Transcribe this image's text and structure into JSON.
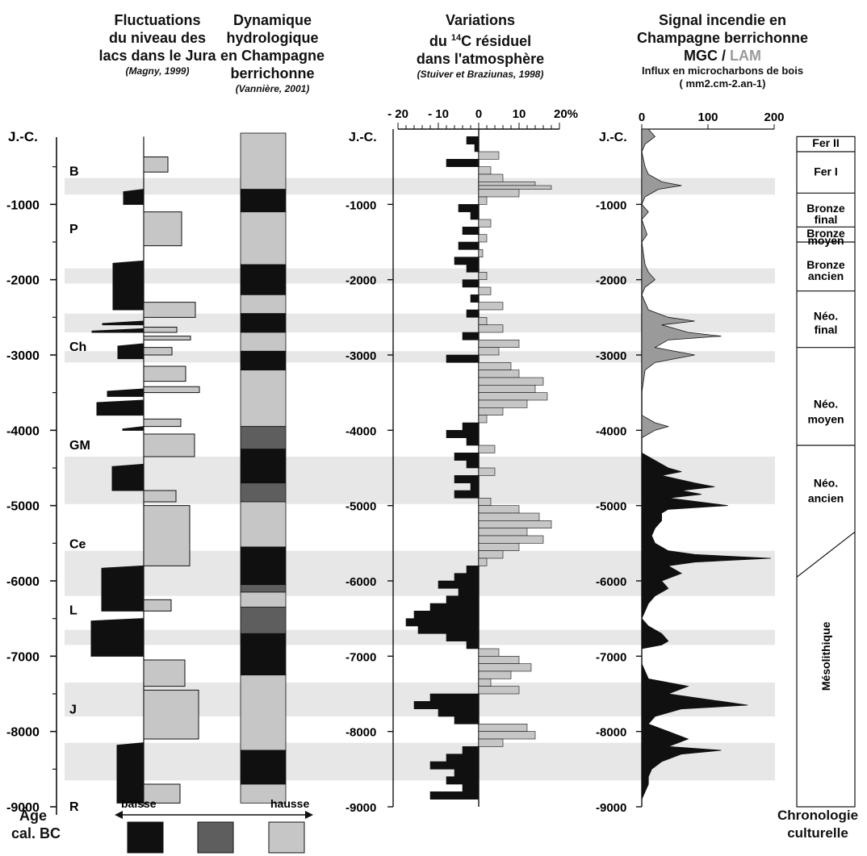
{
  "headers": {
    "lakes": {
      "l1": "Fluctuations",
      "l2": "du niveau des",
      "l3": "lacs dans le Jura",
      "ref": "(Magny, 1999)"
    },
    "hydro": {
      "l1": "Dynamique",
      "l2": "hydrologique",
      "l3": "en Champagne",
      "l4": "berrichonne",
      "ref": "(Vannière, 2001)"
    },
    "c14": {
      "l1": "Variations",
      "l2a": "du ",
      "l2sup": "14",
      "l2b": "C résiduel",
      "l3": "dans l'atmosphère",
      "ref": "(Stuiver et Braziunas, 1998)"
    },
    "fire": {
      "l1": "Signal incendie en",
      "l2": "Champagne berrichonne",
      "l3a": "MGC / ",
      "l3b": "LAM",
      "l4": "Influx en microcharbons de bois",
      "l5": "( mm2.cm-2.an-1)"
    }
  },
  "axis": {
    "jc": "J.-C.",
    "ticks": [
      "-1000",
      "-2000",
      "-3000",
      "-4000",
      "-5000",
      "-6000",
      "-7000",
      "-8000",
      "-9000"
    ],
    "title_l1": "Âge",
    "title_l2": "cal. BC"
  },
  "c14_axis": {
    "ticks": [
      "- 20",
      "- 10",
      "0",
      "10",
      "20%"
    ]
  },
  "fire_axis": {
    "ticks": [
      "0",
      "100",
      "200"
    ]
  },
  "phases": [
    "B",
    "P",
    "Ch",
    "GM",
    "Ce",
    "L",
    "J",
    "R"
  ],
  "legend": {
    "left": "baisse",
    "right": "hausse"
  },
  "culture": {
    "periods": [
      "Fer II",
      "Fer I",
      "Bronze final",
      "Bronze moyen",
      "Bronze ancien",
      "Néo. final",
      "Néo. moyen",
      "Néo. ancien",
      "Mésolithique"
    ],
    "title_l1": "Chronologie",
    "title_l2": "culturelle"
  },
  "colors": {
    "dark": "#101010",
    "medium": "#5e5e5e",
    "light": "#c6c6c6",
    "band": "#e7e7e7"
  },
  "chart_data": {
    "type": "area",
    "y_axis": {
      "label": "Âge cal. BC",
      "range": [
        -9000,
        0
      ]
    },
    "lake_levels": {
      "high_phases": [
        [
          -370,
          -570
        ],
        [
          -1100,
          -1550
        ],
        [
          -2300,
          -2500
        ],
        [
          -2630,
          -2700
        ],
        [
          -2750,
          -2800
        ],
        [
          -2900,
          -3000
        ],
        [
          -3150,
          -3350
        ],
        [
          -3420,
          -3500
        ],
        [
          -3850,
          -3950
        ],
        [
          -4050,
          -4350
        ],
        [
          -4800,
          -4950
        ],
        [
          -5000,
          -5800
        ],
        [
          -6250,
          -6400
        ],
        [
          -7050,
          -7400
        ],
        [
          -7450,
          -8100
        ],
        [
          -8700,
          -8950
        ]
      ],
      "low_phases": [
        [
          -800,
          -1000
        ],
        [
          -1750,
          -2400
        ],
        [
          -2550,
          -2600
        ],
        [
          -2650,
          -2700
        ],
        [
          -2850,
          -3050
        ],
        [
          -3450,
          -3550
        ],
        [
          -3600,
          -3800
        ],
        [
          -3950,
          -4000
        ],
        [
          -4450,
          -4800
        ],
        [
          -5800,
          -6400
        ],
        [
          -6500,
          -7000
        ],
        [
          -8150,
          -8950
        ]
      ]
    },
    "hydrology": {
      "levels": [
        "dark",
        "medium",
        "light"
      ],
      "segments": [
        {
          "from": 0,
          "to": -800,
          "level": "light"
        },
        {
          "from": -800,
          "to": -1100,
          "level": "dark"
        },
        {
          "from": -1100,
          "to": -1800,
          "level": "light"
        },
        {
          "from": -1800,
          "to": -2200,
          "level": "dark"
        },
        {
          "from": -2200,
          "to": -2450,
          "level": "light"
        },
        {
          "from": -2450,
          "to": -2700,
          "level": "dark"
        },
        {
          "from": -2700,
          "to": -2950,
          "level": "light"
        },
        {
          "from": -2950,
          "to": -3200,
          "level": "dark"
        },
        {
          "from": -3200,
          "to": -3950,
          "level": "light"
        },
        {
          "from": -3950,
          "to": -4250,
          "level": "medium"
        },
        {
          "from": -4250,
          "to": -4700,
          "level": "dark"
        },
        {
          "from": -4700,
          "to": -4950,
          "level": "medium"
        },
        {
          "from": -4950,
          "to": -5550,
          "level": "light"
        },
        {
          "from": -5550,
          "to": -6050,
          "level": "dark"
        },
        {
          "from": -6050,
          "to": -6150,
          "level": "medium"
        },
        {
          "from": -6150,
          "to": -6350,
          "level": "light"
        },
        {
          "from": -6350,
          "to": -6700,
          "level": "medium"
        },
        {
          "from": -6700,
          "to": -7250,
          "level": "dark"
        },
        {
          "from": -7250,
          "to": -8250,
          "level": "light"
        },
        {
          "from": -8250,
          "to": -8700,
          "level": "dark"
        },
        {
          "from": -8700,
          "to": -8950,
          "level": "light"
        }
      ]
    },
    "c14": {
      "x_label": "%",
      "x_range": [
        -20,
        20
      ],
      "points": [
        [
          -100,
          -3
        ],
        [
          -200,
          -1
        ],
        [
          -300,
          5
        ],
        [
          -400,
          -8
        ],
        [
          -500,
          3
        ],
        [
          -600,
          6
        ],
        [
          -700,
          14
        ],
        [
          -750,
          18
        ],
        [
          -800,
          10
        ],
        [
          -900,
          2
        ],
        [
          -1000,
          -5
        ],
        [
          -1100,
          -2
        ],
        [
          -1200,
          3
        ],
        [
          -1300,
          -4
        ],
        [
          -1400,
          2
        ],
        [
          -1500,
          -5
        ],
        [
          -1600,
          1
        ],
        [
          -1700,
          -6
        ],
        [
          -1800,
          -3
        ],
        [
          -1900,
          2
        ],
        [
          -2000,
          -4
        ],
        [
          -2100,
          3
        ],
        [
          -2200,
          -2
        ],
        [
          -2300,
          6
        ],
        [
          -2400,
          -3
        ],
        [
          -2500,
          2
        ],
        [
          -2600,
          6
        ],
        [
          -2700,
          -4
        ],
        [
          -2800,
          10
        ],
        [
          -2900,
          5
        ],
        [
          -3000,
          -8
        ],
        [
          -3100,
          8
        ],
        [
          -3200,
          10
        ],
        [
          -3300,
          16
        ],
        [
          -3400,
          14
        ],
        [
          -3500,
          17
        ],
        [
          -3600,
          12
        ],
        [
          -3700,
          6
        ],
        [
          -3800,
          2
        ],
        [
          -3900,
          -4
        ],
        [
          -4000,
          -8
        ],
        [
          -4100,
          -3
        ],
        [
          -4200,
          4
        ],
        [
          -4300,
          -6
        ],
        [
          -4400,
          -3
        ],
        [
          -4500,
          4
        ],
        [
          -4600,
          -6
        ],
        [
          -4700,
          -2
        ],
        [
          -4800,
          -6
        ],
        [
          -4900,
          3
        ],
        [
          -5000,
          10
        ],
        [
          -5100,
          15
        ],
        [
          -5200,
          18
        ],
        [
          -5300,
          12
        ],
        [
          -5400,
          16
        ],
        [
          -5500,
          10
        ],
        [
          -5600,
          6
        ],
        [
          -5700,
          2
        ],
        [
          -5800,
          -3
        ],
        [
          -5900,
          -6
        ],
        [
          -6000,
          -10
        ],
        [
          -6100,
          -5
        ],
        [
          -6200,
          -8
        ],
        [
          -6300,
          -12
        ],
        [
          -6400,
          -16
        ],
        [
          -6500,
          -18
        ],
        [
          -6600,
          -15
        ],
        [
          -6700,
          -8
        ],
        [
          -6800,
          -3
        ],
        [
          -6900,
          5
        ],
        [
          -7000,
          10
        ],
        [
          -7100,
          13
        ],
        [
          -7200,
          8
        ],
        [
          -7300,
          3
        ],
        [
          -7400,
          10
        ],
        [
          -7500,
          -12
        ],
        [
          -7600,
          -16
        ],
        [
          -7700,
          -10
        ],
        [
          -7800,
          -6
        ],
        [
          -7900,
          12
        ],
        [
          -8000,
          14
        ],
        [
          -8100,
          6
        ],
        [
          -8200,
          -4
        ],
        [
          -8300,
          -8
        ],
        [
          -8400,
          -12
        ],
        [
          -8500,
          -6
        ],
        [
          -8600,
          -8
        ],
        [
          -8700,
          -4
        ],
        [
          -8800,
          -12
        ],
        [
          -8900,
          -6
        ]
      ]
    },
    "fire_signal": {
      "x_label": "mm2.cm-2.an-1",
      "x_range": [
        0,
        200
      ],
      "lam": [
        [
          0,
          10
        ],
        [
          -100,
          20
        ],
        [
          -200,
          5
        ],
        [
          -300,
          0
        ],
        [
          -500,
          5
        ],
        [
          -600,
          10
        ],
        [
          -700,
          30
        ],
        [
          -750,
          60
        ],
        [
          -800,
          25
        ],
        [
          -900,
          5
        ],
        [
          -1000,
          0
        ],
        [
          -1100,
          10
        ],
        [
          -1200,
          0
        ],
        [
          -1400,
          8
        ],
        [
          -1500,
          0
        ],
        [
          -1800,
          5
        ],
        [
          -1900,
          10
        ],
        [
          -2000,
          20
        ],
        [
          -2100,
          5
        ],
        [
          -2200,
          0
        ],
        [
          -2400,
          10
        ],
        [
          -2500,
          40
        ],
        [
          -2550,
          80
        ],
        [
          -2600,
          30
        ],
        [
          -2700,
          70
        ],
        [
          -2750,
          120
        ],
        [
          -2800,
          40
        ],
        [
          -2900,
          20
        ],
        [
          -2950,
          50
        ],
        [
          -3000,
          80
        ],
        [
          -3050,
          50
        ],
        [
          -3100,
          20
        ],
        [
          -3200,
          5
        ],
        [
          -3500,
          0
        ],
        [
          -3800,
          0
        ],
        [
          -3900,
          20
        ],
        [
          -3950,
          40
        ],
        [
          -4000,
          20
        ],
        [
          -4100,
          0
        ],
        [
          -4300,
          0
        ]
      ],
      "mgc": [
        [
          -4300,
          0
        ],
        [
          -4400,
          20
        ],
        [
          -4500,
          40
        ],
        [
          -4550,
          60
        ],
        [
          -4600,
          30
        ],
        [
          -4700,
          80
        ],
        [
          -4750,
          110
        ],
        [
          -4800,
          60
        ],
        [
          -4850,
          90
        ],
        [
          -4900,
          40
        ],
        [
          -5000,
          130
        ],
        [
          -5050,
          40
        ],
        [
          -5100,
          30
        ],
        [
          -5200,
          30
        ],
        [
          -5300,
          20
        ],
        [
          -5400,
          15
        ],
        [
          -5500,
          20
        ],
        [
          -5600,
          40
        ],
        [
          -5650,
          80
        ],
        [
          -5700,
          195
        ],
        [
          -5750,
          80
        ],
        [
          -5800,
          40
        ],
        [
          -5900,
          60
        ],
        [
          -6000,
          30
        ],
        [
          -6100,
          40
        ],
        [
          -6200,
          20
        ],
        [
          -6300,
          10
        ],
        [
          -6400,
          5
        ],
        [
          -6500,
          0
        ],
        [
          -6600,
          10
        ],
        [
          -6700,
          30
        ],
        [
          -6800,
          40
        ],
        [
          -6850,
          30
        ],
        [
          -6900,
          0
        ],
        [
          -7100,
          0
        ],
        [
          -7300,
          10
        ],
        [
          -7400,
          70
        ],
        [
          -7500,
          40
        ],
        [
          -7600,
          120
        ],
        [
          -7650,
          160
        ],
        [
          -7700,
          60
        ],
        [
          -7800,
          20
        ],
        [
          -7900,
          10
        ],
        [
          -8000,
          40
        ],
        [
          -8100,
          70
        ],
        [
          -8200,
          40
        ],
        [
          -8250,
          120
        ],
        [
          -8300,
          60
        ],
        [
          -8400,
          30
        ],
        [
          -8500,
          15
        ],
        [
          -8600,
          10
        ],
        [
          -8700,
          10
        ],
        [
          -8800,
          5
        ],
        [
          -8900,
          0
        ],
        [
          -9000,
          0
        ]
      ]
    },
    "highlight_bands": [
      [
        -650,
        -870
      ],
      [
        -1850,
        -2050
      ],
      [
        -2450,
        -2700
      ],
      [
        -2950,
        -3100
      ],
      [
        -4350,
        -4980
      ],
      [
        -5600,
        -6200
      ],
      [
        -6650,
        -6850
      ],
      [
        -7350,
        -7800
      ],
      [
        -8150,
        -8650
      ]
    ],
    "culture_boundaries": [
      -300,
      -850,
      -1300,
      -1500,
      -2150,
      -2900,
      -4200,
      -5350,
      -9000
    ]
  }
}
